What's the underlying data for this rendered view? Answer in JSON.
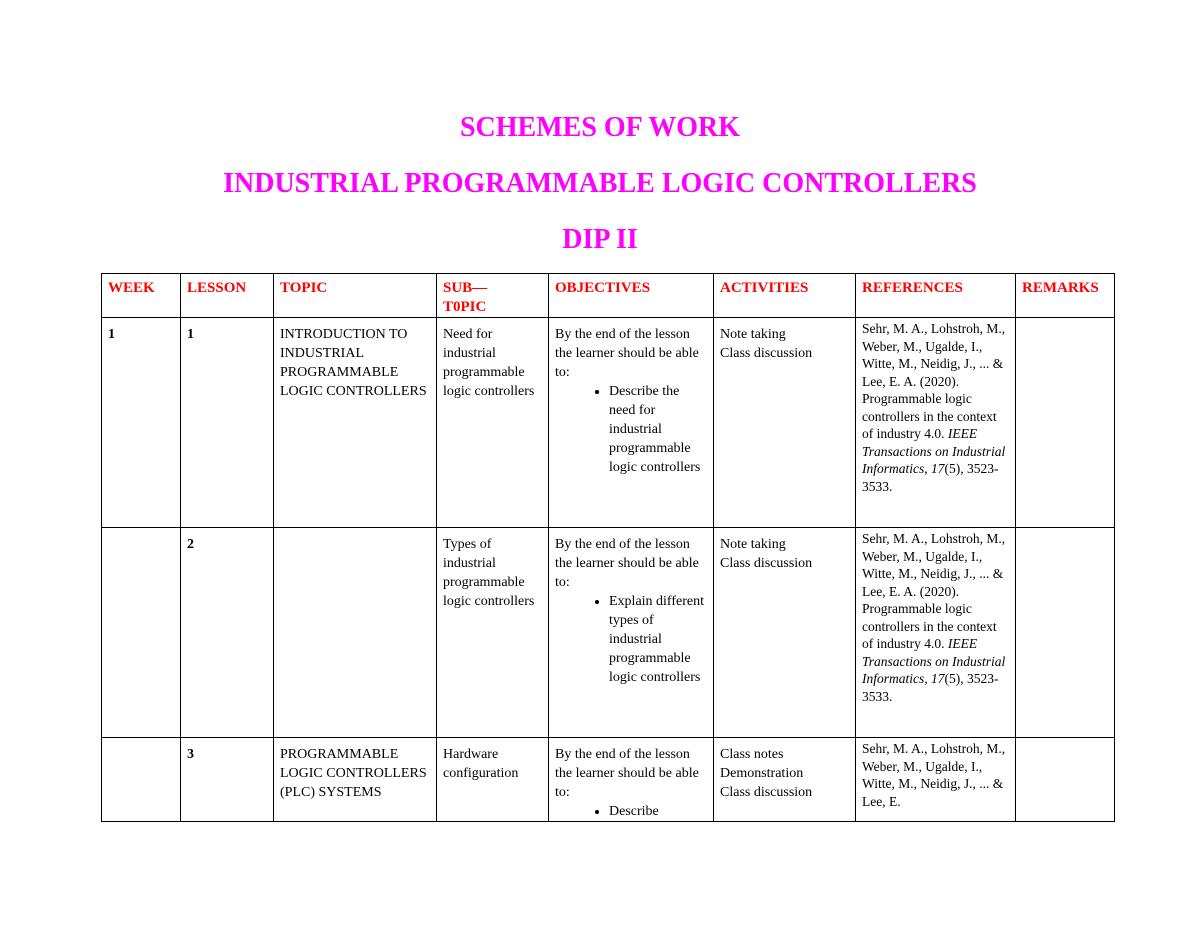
{
  "titles": [
    "SCHEMES OF WORK",
    "INDUSTRIAL PROGRAMMABLE LOGIC CONTROLLERS",
    "DIP II"
  ],
  "colors": {
    "title": "#ff00ff",
    "header": "#ff0000"
  },
  "table": {
    "headers": [
      "WEEK",
      "LESSON",
      "TOPIC",
      "SUB— T0PIC",
      "OBJECTIVES",
      "ACTIVITIES",
      "REFERENCES",
      "REMARKS"
    ],
    "rows": [
      {
        "week": "1",
        "lesson": "1",
        "topic": "INTRODUCTION TO INDUSTRIAL PROGRAMMABLE LOGIC CONTROLLERS",
        "subtopic": "Need for industrial programmable logic controllers",
        "objective_intro": "By the end of the lesson the learner should be able to:",
        "objective_bullet": "Describe the need for industrial programmable logic controllers",
        "activities": [
          "Note taking",
          "Class discussion"
        ],
        "reference": {
          "authors": "Sehr, M. A., Lohstroh, M., Weber, M., Ugalde, I., Witte, M., Neidig, J., ... & Lee, E. A. (2020). Programmable logic controllers in the context of industry 4.0. ",
          "journal": "IEEE Transactions on Industrial Informatics",
          "sep": ", ",
          "volume": "17",
          "rest": "(5), 3523-3533."
        },
        "remarks": ""
      },
      {
        "week": "",
        "lesson": "2",
        "topic": "",
        "subtopic": "Types of industrial programmable logic controllers",
        "objective_intro": "By the end of the lesson the learner should be able to:",
        "objective_bullet": "Explain different types of industrial programmable logic controllers",
        "activities": [
          "Note taking",
          "Class discussion"
        ],
        "reference": {
          "authors": "Sehr, M. A., Lohstroh, M., Weber, M., Ugalde, I., Witte, M., Neidig, J., ... & Lee, E. A. (2020). Programmable logic controllers in the context of industry 4.0. ",
          "journal": "IEEE Transactions on Industrial Informatics",
          "sep": ", ",
          "volume": "17",
          "rest": "(5), 3523-3533."
        },
        "remarks": ""
      },
      {
        "week": "",
        "lesson": "3",
        "topic": "PROGRAMMABLE LOGIC CONTROLLERS (PLC) SYSTEMS",
        "subtopic": "Hardware configuration",
        "objective_intro": "By the end of the lesson the learner should be able to:",
        "objective_bullet": "Describe",
        "activities": [
          "Class notes",
          "Demonstration",
          "Class discussion"
        ],
        "reference": {
          "authors": "Sehr, M. A., Lohstroh, M., Weber, M., Ugalde, I., Witte, M., Neidig, J., ... & Lee, E."
        },
        "remarks": ""
      }
    ]
  }
}
